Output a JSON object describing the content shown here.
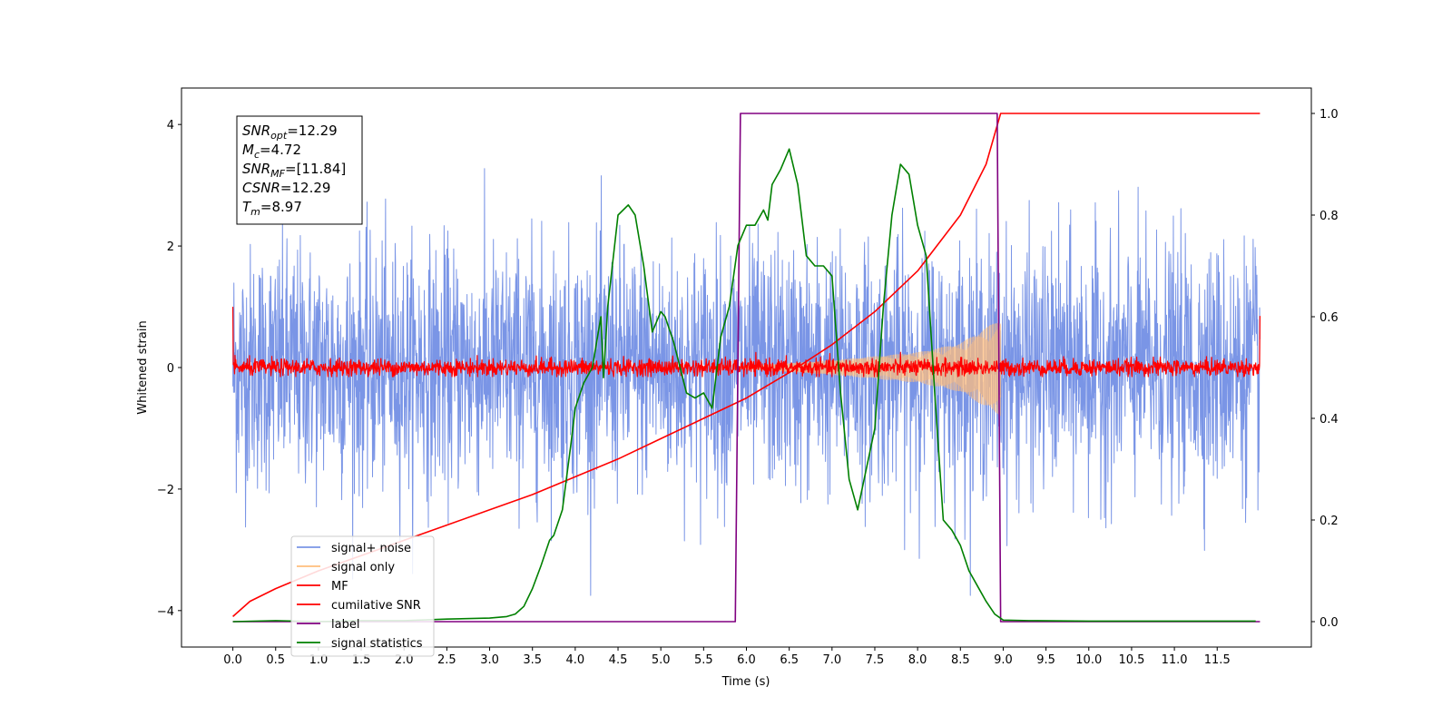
{
  "chart_data": {
    "type": "line",
    "xlabel": "Time (s)",
    "ylabel": "Whitened strain",
    "xlim": [
      -0.6,
      12.6
    ],
    "ylim": [
      -4.6,
      4.6
    ],
    "y2lim": [
      -0.05,
      1.05
    ],
    "x_ticks": [
      0.0,
      0.5,
      1.0,
      1.5,
      2.0,
      2.5,
      3.0,
      3.5,
      4.0,
      4.5,
      5.0,
      5.5,
      6.0,
      6.5,
      7.0,
      7.5,
      8.0,
      8.5,
      9.0,
      9.5,
      10.0,
      10.5,
      11.0,
      11.5
    ],
    "x_tick_labels": [
      "0.0",
      "0.5",
      "1.0",
      "1.5",
      "2.0",
      "2.5",
      "3.0",
      "3.5",
      "4.0",
      "4.5",
      "5.0",
      "5.5",
      "6.0",
      "6.5",
      "7.0",
      "7.5",
      "8.0",
      "8.5",
      "9.0",
      "9.5",
      "10.0",
      "10.5",
      "11.0",
      "11.5"
    ],
    "y_ticks": [
      -4,
      -2,
      0,
      2,
      4
    ],
    "y_tick_labels": [
      "−4",
      "−2",
      "0",
      "2",
      "4"
    ],
    "y2_ticks": [
      0.0,
      0.2,
      0.4,
      0.6,
      0.8,
      1.0
    ],
    "y2_tick_labels": [
      "0.0",
      "0.2",
      "0.4",
      "0.6",
      "0.8",
      "1.0"
    ],
    "legend_position": "lower-left",
    "info_box": [
      {
        "base": "SNR",
        "sub": "opt",
        "value": "=12.29"
      },
      {
        "base": "M",
        "sub": "c",
        "value": "=4.72"
      },
      {
        "base": "SNR",
        "sub": "MF",
        "value": "=[11.84]"
      },
      {
        "base": "CSNR",
        "sub": "",
        "value": "=12.29"
      },
      {
        "base": "T",
        "sub": "m",
        "value": "=8.97"
      }
    ],
    "series": [
      {
        "name": "signal+ noise",
        "color": "#7a95e6",
        "axis": "left",
        "style": "noise",
        "x_range": [
          0.0,
          12.0
        ],
        "amplitude_sd": 1.0,
        "y_min": -3.75,
        "y_max": 4.15
      },
      {
        "name": "signal only",
        "color": "#ffbe7d",
        "axis": "left",
        "style": "chirp",
        "x_range": [
          5.9,
          8.97
        ],
        "envelope": [
          [
            5.9,
            0.02
          ],
          [
            7.0,
            0.12
          ],
          [
            8.0,
            0.25
          ],
          [
            8.5,
            0.4
          ],
          [
            8.97,
            0.8
          ]
        ]
      },
      {
        "name": "MF",
        "color": "#ff0000",
        "axis": "left",
        "style": "noise",
        "x_range": [
          0.0,
          12.0
        ],
        "amplitude_sd": 0.07,
        "y_min": -0.15,
        "y_max": 0.25
      },
      {
        "name": "cumilative SNR",
        "color": "#ff0000",
        "axis": "right",
        "x": [
          0.0,
          0.2,
          0.5,
          1.0,
          1.5,
          2.0,
          2.5,
          3.0,
          3.5,
          4.0,
          4.5,
          5.0,
          5.5,
          6.0,
          6.5,
          7.0,
          7.5,
          8.0,
          8.5,
          8.8,
          8.97,
          9.0,
          12.0
        ],
        "y": [
          0.01,
          0.04,
          0.065,
          0.1,
          0.13,
          0.16,
          0.19,
          0.22,
          0.25,
          0.285,
          0.32,
          0.36,
          0.4,
          0.44,
          0.49,
          0.545,
          0.61,
          0.69,
          0.8,
          0.9,
          1.0,
          1.0,
          1.0
        ]
      },
      {
        "name": "label",
        "color": "#800080",
        "axis": "right",
        "x": [
          0.0,
          5.87,
          5.93,
          8.93,
          8.97,
          12.0
        ],
        "y": [
          0.0,
          0.0,
          1.0,
          1.0,
          0.0,
          0.0
        ]
      },
      {
        "name": "signal statistics",
        "color": "#008000",
        "axis": "right",
        "x": [
          0.0,
          0.5,
          1.0,
          1.5,
          2.0,
          2.5,
          3.0,
          3.2,
          3.3,
          3.4,
          3.5,
          3.6,
          3.7,
          3.75,
          3.85,
          3.95,
          4.0,
          4.1,
          4.2,
          4.3,
          4.33,
          4.38,
          4.5,
          4.62,
          4.7,
          4.8,
          4.9,
          5.0,
          5.05,
          5.15,
          5.3,
          5.4,
          5.5,
          5.6,
          5.7,
          5.8,
          5.9,
          6.0,
          6.1,
          6.2,
          6.25,
          6.3,
          6.4,
          6.5,
          6.6,
          6.7,
          6.8,
          6.9,
          7.0,
          7.1,
          7.2,
          7.3,
          7.4,
          7.5,
          7.6,
          7.7,
          7.8,
          7.9,
          8.0,
          8.1,
          8.2,
          8.3,
          8.4,
          8.5,
          8.6,
          8.7,
          8.8,
          8.9,
          9.0,
          9.3,
          10.0,
          11.0,
          11.95
        ],
        "y": [
          0.0,
          0.002,
          0.0,
          0.002,
          0.002,
          0.005,
          0.007,
          0.01,
          0.015,
          0.03,
          0.065,
          0.11,
          0.16,
          0.17,
          0.22,
          0.35,
          0.42,
          0.47,
          0.5,
          0.6,
          0.48,
          0.62,
          0.8,
          0.82,
          0.8,
          0.7,
          0.57,
          0.61,
          0.6,
          0.55,
          0.45,
          0.44,
          0.45,
          0.42,
          0.56,
          0.62,
          0.74,
          0.78,
          0.78,
          0.81,
          0.79,
          0.86,
          0.89,
          0.93,
          0.86,
          0.72,
          0.7,
          0.7,
          0.68,
          0.45,
          0.28,
          0.22,
          0.3,
          0.38,
          0.62,
          0.8,
          0.9,
          0.88,
          0.78,
          0.72,
          0.45,
          0.2,
          0.18,
          0.15,
          0.1,
          0.07,
          0.04,
          0.015,
          0.003,
          0.002,
          0.001,
          0.001,
          0.001
        ]
      }
    ]
  }
}
